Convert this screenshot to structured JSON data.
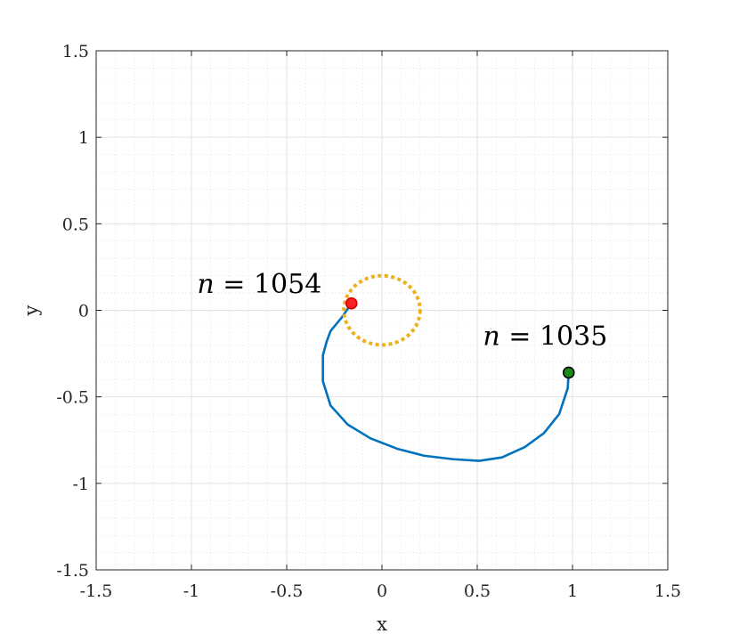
{
  "chart_data": {
    "type": "line",
    "title": "",
    "xlabel": "x",
    "ylabel": "y",
    "xlim": [
      -1.5,
      1.5
    ],
    "ylim": [
      -1.5,
      1.5
    ],
    "x_ticks": [
      "-1.5",
      "-1",
      "-0.5",
      "0",
      "0.5",
      "1",
      "1.5"
    ],
    "y_ticks": [
      "1.5",
      "1",
      "0.5",
      "0",
      "-0.5",
      "-1",
      "-1.5"
    ],
    "grid": true,
    "minor_grid": true,
    "series": [
      {
        "type": "line",
        "color": "#0072BD",
        "x": [
          0.98,
          0.975,
          0.93,
          0.85,
          0.75,
          0.63,
          0.51,
          0.37,
          0.22,
          0.08,
          -0.06,
          -0.18,
          -0.27,
          -0.31,
          -0.31,
          -0.29,
          -0.27,
          -0.21,
          -0.16
        ],
        "y": [
          -0.36,
          -0.45,
          -0.6,
          -0.71,
          -0.79,
          -0.85,
          -0.87,
          -0.86,
          -0.84,
          -0.8,
          -0.74,
          -0.66,
          -0.55,
          -0.41,
          -0.26,
          -0.18,
          -0.12,
          -0.04,
          0.04
        ]
      },
      {
        "type": "circle",
        "color": "#EDB120",
        "style": "dotted",
        "center": [
          0,
          0
        ],
        "radius": 0.2
      }
    ],
    "markers": [
      {
        "x": 0.98,
        "y": -0.36,
        "color": "#1a8a1a",
        "edge": "#000000"
      },
      {
        "x": -0.16,
        "y": 0.04,
        "color": "#ff2020",
        "edge": "#d00000"
      }
    ],
    "annotations": [
      {
        "var": "n",
        "text": " = 1054",
        "x": -0.97,
        "y": 0.1
      },
      {
        "var": "n",
        "text": " = 1035",
        "x": 0.53,
        "y": -0.2
      }
    ]
  }
}
